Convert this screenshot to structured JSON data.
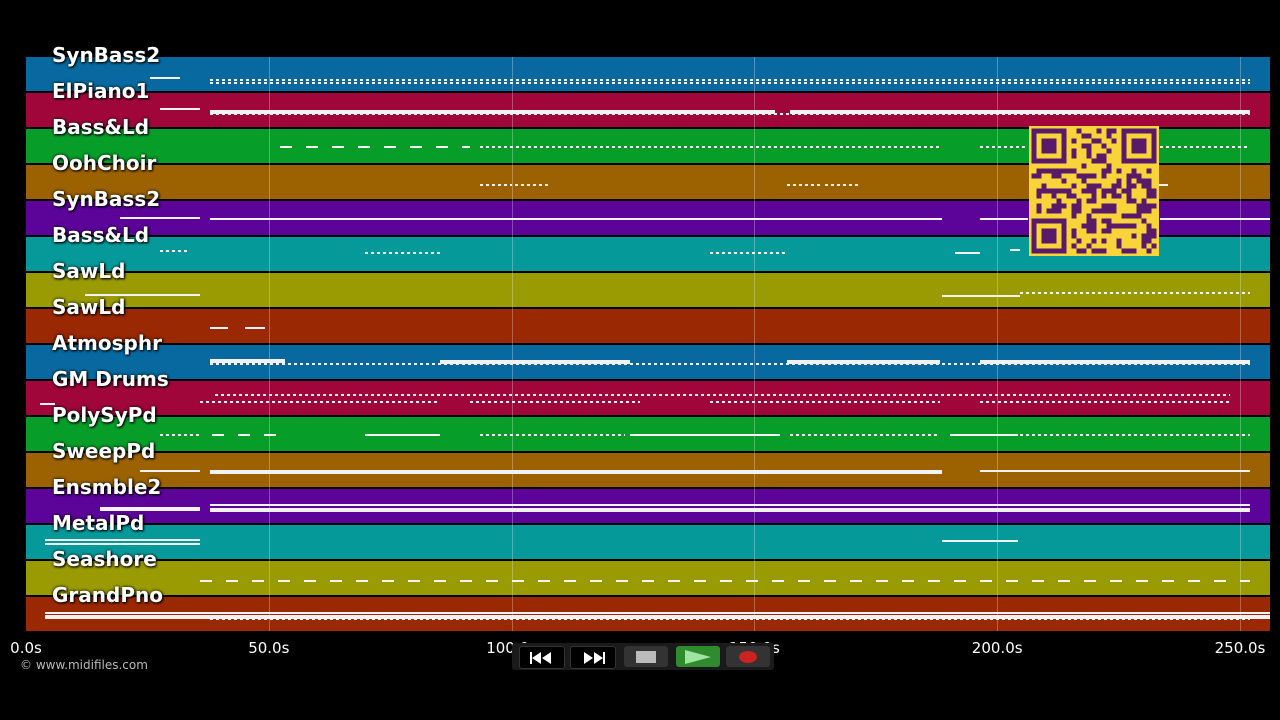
{
  "tracks": [
    {
      "name": "SynBass2",
      "color": "#0869a0"
    },
    {
      "name": "ElPiano1",
      "color": "#a0063a"
    },
    {
      "name": "Bass&Ld",
      "color": "#069e28"
    },
    {
      "name": "OohChoir",
      "color": "#9c6202"
    },
    {
      "name": "SynBass2",
      "color": "#5c0399"
    },
    {
      "name": "Bass&Ld",
      "color": "#05999a"
    },
    {
      "name": "SawLd",
      "color": "#9a9a02"
    },
    {
      "name": "SawLd",
      "color": "#9a2802"
    },
    {
      "name": "Atmosphr",
      "color": "#0869a0"
    },
    {
      "name": "GM Drums",
      "color": "#a0063a"
    },
    {
      "name": "PolySyPd",
      "color": "#069e28"
    },
    {
      "name": "SweepPd",
      "color": "#9c6202"
    },
    {
      "name": "Ensmble2",
      "color": "#5c0399"
    },
    {
      "name": "MetalPd",
      "color": "#05999a"
    },
    {
      "name": "Seashore",
      "color": "#9a9a02"
    },
    {
      "name": "GrandPno",
      "color": "#9a2802"
    }
  ],
  "timeline": {
    "max_seconds": 256,
    "ticks": [
      "0.0s",
      "50.0s",
      "100.0s",
      "150.0s",
      "200.0s",
      "250.0s"
    ],
    "tick_values": [
      0,
      50,
      100,
      150,
      200,
      250
    ]
  },
  "copyright": "© www.midifiles.com",
  "controls": {
    "rewind": "rewind-icon",
    "fast_forward": "fast-forward-icon",
    "stop": "stop-icon",
    "play": "play-icon",
    "record": "record-icon"
  },
  "colors": {
    "background": "#000000",
    "note": "#f2f2f2",
    "qr_background": "#f8d43a",
    "qr_module": "#5a1a6a",
    "play_green": "#2e8b2e",
    "record_red": "#cc2222"
  }
}
